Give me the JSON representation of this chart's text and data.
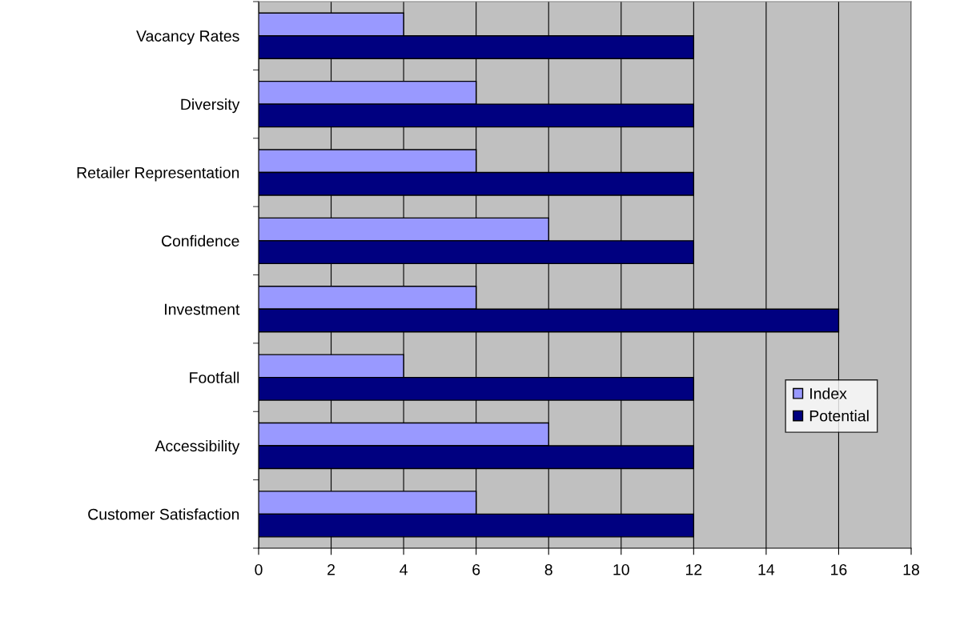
{
  "chart_data": {
    "type": "bar",
    "orientation": "horizontal",
    "categories": [
      "Vacancy Rates",
      "Diversity",
      "Retailer Representation",
      "Confidence",
      "Investment",
      "Footfall",
      "Accessibility",
      "Customer Satisfaction"
    ],
    "series": [
      {
        "name": "Index",
        "color": "#9999ff",
        "values": [
          4,
          6,
          6,
          8,
          6,
          4,
          8,
          6
        ]
      },
      {
        "name": "Potential",
        "color": "#000080",
        "values": [
          12,
          12,
          12,
          12,
          16,
          12,
          12,
          12
        ]
      }
    ],
    "xlim": [
      0,
      18
    ],
    "xticks": [
      0,
      2,
      4,
      6,
      8,
      10,
      12,
      14,
      16,
      18
    ],
    "grid": "x",
    "legend": "right"
  }
}
